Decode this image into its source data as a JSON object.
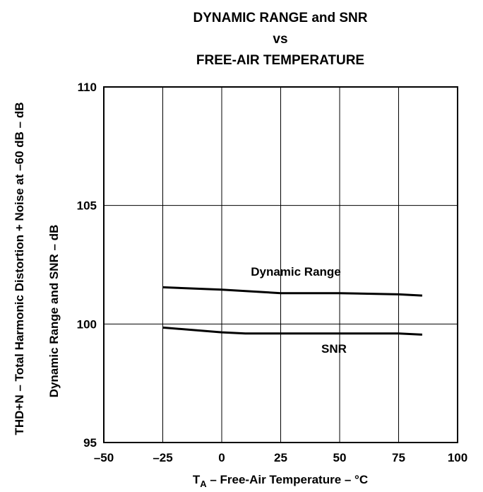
{
  "chart_data": {
    "type": "line",
    "title_lines": [
      "DYNAMIC RANGE and SNR",
      "vs",
      "FREE-AIR TEMPERATURE"
    ],
    "xlabel_main": "T",
    "xlabel_sub": "A",
    "xlabel_rest": " – Free-Air Temperature – °C",
    "ylabel": "Dynamic Range and SNR – dB",
    "ylabel_outer": "THD+N – Total Harmonic Distortion + Noise at –60 dB – dB",
    "xlim": [
      -50,
      100
    ],
    "ylim": [
      95,
      110
    ],
    "x_ticks": [
      -50,
      -25,
      0,
      25,
      50,
      75,
      100
    ],
    "x_tick_labels": [
      "–50",
      "–25",
      "0",
      "25",
      "50",
      "75",
      "100"
    ],
    "y_ticks": [
      95,
      100,
      105,
      110
    ],
    "y_tick_labels": [
      "95",
      "100",
      "105",
      "110"
    ],
    "grid": true,
    "series": [
      {
        "name": "Dynamic Range",
        "x": [
          -25,
          0,
          25,
          50,
          75,
          85
        ],
        "y": [
          101.55,
          101.45,
          101.3,
          101.3,
          101.25,
          101.2
        ]
      },
      {
        "name": "SNR",
        "x": [
          -25,
          0,
          10,
          25,
          50,
          75,
          85
        ],
        "y": [
          99.85,
          99.65,
          99.6,
          99.6,
          99.6,
          99.6,
          99.55
        ]
      }
    ]
  }
}
